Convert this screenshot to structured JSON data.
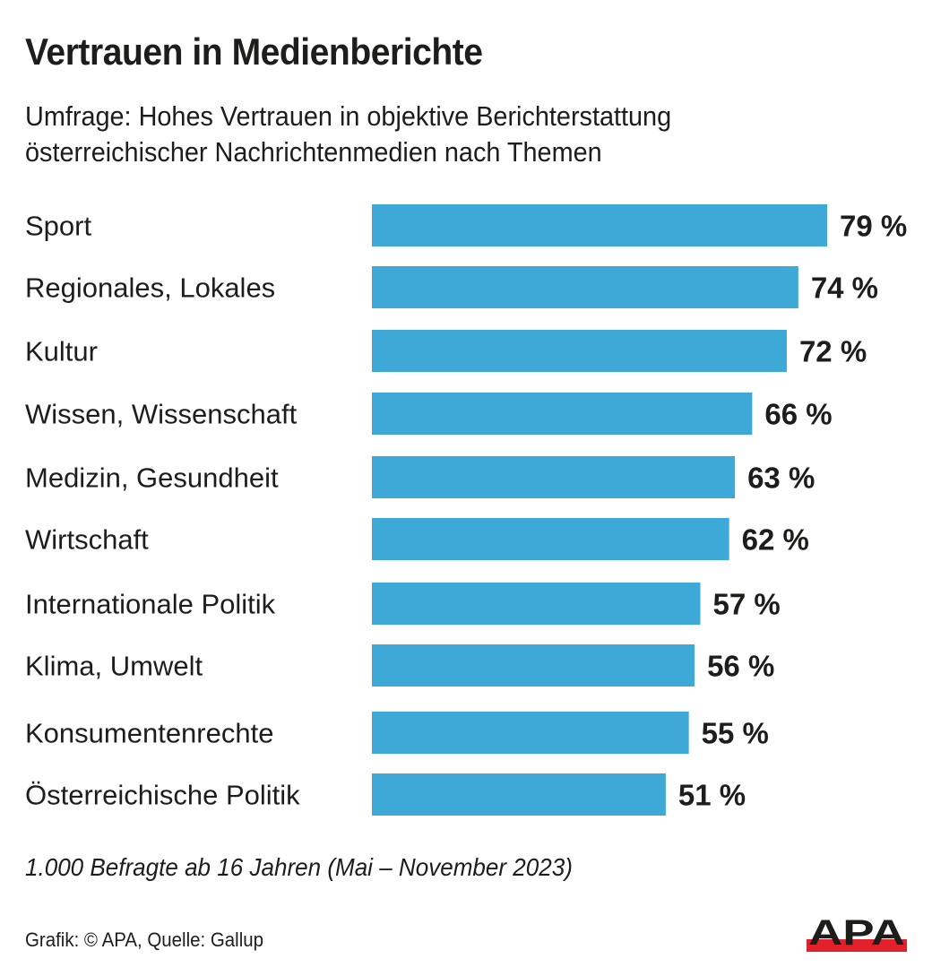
{
  "colors": {
    "bar": "#3ea8d6",
    "text": "#1d1d1b",
    "logo_red": "#e3212b",
    "logo_black": "#1d1d1b"
  },
  "title": "Vertrauen in Medienberichte",
  "subtitle_lines": [
    "Umfrage: Hohes Vertrauen in objektive Berichterstattung",
    "österreichischer Nachrichtenmedien nach Themen"
  ],
  "note": "1.000 Befragte ab 16 Jahren (Mai – November 2023)",
  "source": "Grafik: © APA, Quelle: Gallup",
  "logo": {
    "text": "APA"
  },
  "chart_data": {
    "type": "bar",
    "orientation": "horizontal",
    "title": "Vertrauen in Medienberichte",
    "subtitle": "Umfrage: Hohes Vertrauen in objektive Berichterstattung österreichischer Nachrichtenmedien nach Themen",
    "xlabel": "",
    "ylabel": "",
    "unit": "%",
    "categories": [
      "Sport",
      "Regionales, Lokales",
      "Kultur",
      "Wissen, Wissenschaft",
      "Medizin, Gesundheit",
      "Wirtschaft",
      "Internationale Politik",
      "Klima, Umwelt",
      "Konsumentenrechte",
      "Österreichische Politik"
    ],
    "values": [
      79,
      74,
      72,
      66,
      63,
      62,
      57,
      56,
      55,
      51
    ],
    "value_labels": [
      "79 %",
      "74 %",
      "72 %",
      "66 %",
      "63 %",
      "62 %",
      "57 %",
      "56 %",
      "55 %",
      "51 %"
    ],
    "xlim": [
      0,
      100
    ],
    "grid": false,
    "legend": "none"
  }
}
